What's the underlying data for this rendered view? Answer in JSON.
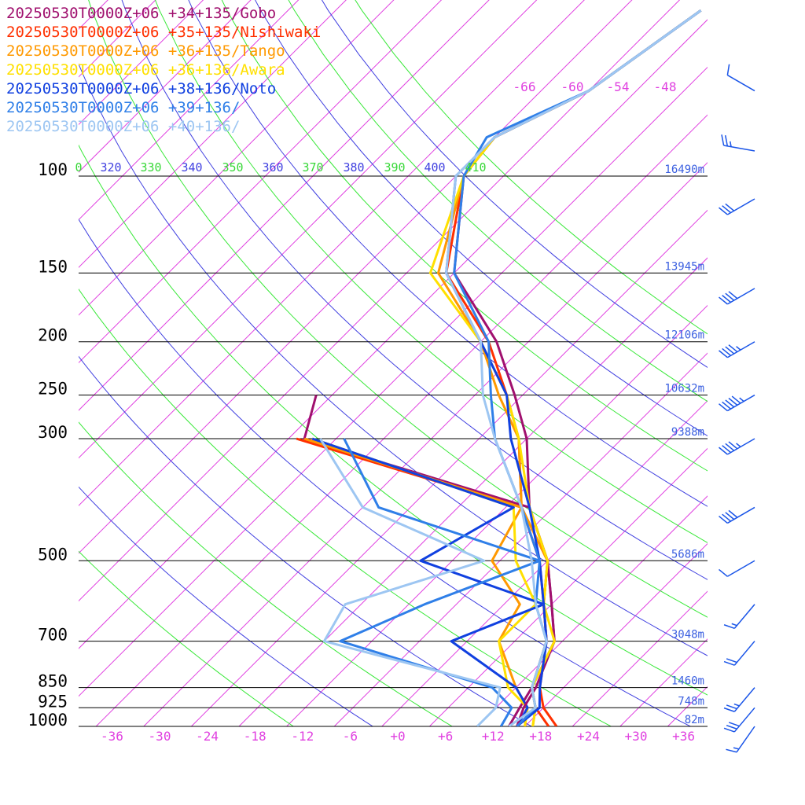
{
  "chart_data": {
    "type": "line",
    "subtype": "skew-t sounding",
    "legend_position": "top-left",
    "x_axis": {
      "label": "",
      "tick_labels": [
        "-36",
        "-30",
        "-24",
        "-18",
        "-12",
        "-6",
        "+0",
        "+6",
        "+12",
        "+18",
        "+24",
        "+30",
        "+36"
      ],
      "range": [
        -40,
        40
      ]
    },
    "y_axis": {
      "label": "",
      "scale": "log-pressure",
      "tick_labels": [
        "100",
        "150",
        "200",
        "250",
        "300",
        "500",
        "700",
        "850",
        "925",
        "1000"
      ],
      "range": [
        1000,
        100
      ]
    },
    "heights": [
      {
        "p": 100,
        "label": "16490m"
      },
      {
        "p": 150,
        "label": "13945m"
      },
      {
        "p": 200,
        "label": "12106m"
      },
      {
        "p": 250,
        "label": "10632m"
      },
      {
        "p": 300,
        "label": "9388m"
      },
      {
        "p": 500,
        "label": "5686m"
      },
      {
        "p": 700,
        "label": "3048m"
      },
      {
        "p": 850,
        "label": "1460m"
      },
      {
        "p": 925,
        "label": "748m"
      },
      {
        "p": 1000,
        "label": "82m"
      }
    ],
    "upper_temp_labels": [
      "-66",
      "-60",
      "-54",
      "-48"
    ],
    "theta_labels": [
      "0",
      "320",
      "330",
      "340",
      "350",
      "360",
      "370",
      "380",
      "390",
      "400",
      "410"
    ],
    "series": [
      {
        "name": "20250530T0000Z+06 +34+135/Gobo",
        "color": "#a0106e",
        "points": [
          [
            1000,
            15
          ],
          [
            925,
            13.5
          ],
          [
            850,
            12.5
          ],
          [
            700,
            9
          ],
          [
            600,
            4
          ],
          [
            500,
            -2
          ],
          [
            400,
            -11
          ],
          [
            300,
            -20
          ],
          [
            250,
            -27
          ],
          [
            200,
            -36
          ],
          [
            150,
            -50
          ],
          [
            100,
            -61
          ],
          [
            85,
            -62
          ],
          [
            70,
            -56
          ],
          [
            50,
            -52
          ]
        ]
      },
      {
        "name": "20250530T0000Z+06 +35+135/Nishiwaki",
        "color": "#ff3000",
        "points": [
          [
            1000,
            20
          ],
          [
            925,
            16
          ],
          [
            850,
            13
          ],
          [
            700,
            8
          ],
          [
            600,
            3
          ],
          [
            500,
            -2
          ],
          [
            400,
            -12
          ],
          [
            300,
            -21
          ],
          [
            250,
            -28
          ],
          [
            200,
            -37
          ],
          [
            150,
            -51
          ],
          [
            100,
            -61
          ],
          [
            85,
            -62
          ],
          [
            70,
            -56
          ],
          [
            50,
            -52
          ]
        ]
      },
      {
        "name": "20250530T0000Z+06 +36+135/Tango",
        "color": "#ff9900",
        "points": [
          [
            1000,
            17
          ],
          [
            925,
            15
          ],
          [
            850,
            12
          ],
          [
            700,
            8
          ],
          [
            600,
            3
          ],
          [
            500,
            -2
          ],
          [
            400,
            -12
          ],
          [
            300,
            -21
          ],
          [
            250,
            -29
          ],
          [
            200,
            -38
          ],
          [
            150,
            -52
          ],
          [
            100,
            -61
          ],
          [
            85,
            -62
          ],
          [
            70,
            -56
          ],
          [
            50,
            -52
          ]
        ]
      },
      {
        "name": "20250530T0000Z+06 +36+136/Awara",
        "color": "#ffe000",
        "points": [
          [
            1000,
            17
          ],
          [
            925,
            15
          ],
          [
            850,
            12
          ],
          [
            700,
            9
          ],
          [
            600,
            3
          ],
          [
            500,
            -2
          ],
          [
            400,
            -11
          ],
          [
            300,
            -21
          ],
          [
            250,
            -28
          ],
          [
            200,
            -38
          ],
          [
            150,
            -53
          ],
          [
            100,
            -61
          ],
          [
            85,
            -62
          ],
          [
            70,
            -56
          ],
          [
            50,
            -52
          ]
        ]
      },
      {
        "name": "20250530T0000Z+06 +38+136/Noto",
        "color": "#1040e0",
        "points": [
          [
            1000,
            15
          ],
          [
            925,
            15.5
          ],
          [
            850,
            13
          ],
          [
            700,
            8
          ],
          [
            600,
            3
          ],
          [
            500,
            -3
          ],
          [
            400,
            -11
          ],
          [
            300,
            -22
          ],
          [
            250,
            -28
          ],
          [
            200,
            -38
          ],
          [
            150,
            -51
          ],
          [
            100,
            -62
          ],
          [
            85,
            -62
          ],
          [
            70,
            -56
          ],
          [
            50,
            -52
          ]
        ]
      },
      {
        "name": "20250530T0000Z+06 +39+136/",
        "color": "#2f7fe8",
        "points": [
          [
            1000,
            15
          ],
          [
            925,
            15
          ],
          [
            850,
            12
          ],
          [
            700,
            8
          ],
          [
            600,
            2
          ],
          [
            500,
            -3
          ],
          [
            400,
            -12
          ],
          [
            300,
            -24
          ],
          [
            250,
            -30
          ],
          [
            200,
            -37
          ],
          [
            150,
            -50
          ],
          [
            100,
            -61
          ],
          [
            85,
            -63
          ],
          [
            70,
            -56
          ],
          [
            50,
            -52
          ]
        ]
      },
      {
        "name": "20250530T0000Z+06 +40+136/",
        "color": "#9dc6f2",
        "points": [
          [
            1000,
            14
          ],
          [
            925,
            15
          ],
          [
            850,
            12
          ],
          [
            700,
            8
          ],
          [
            600,
            2
          ],
          [
            500,
            -4
          ],
          [
            400,
            -12
          ],
          [
            300,
            -24
          ],
          [
            250,
            -31
          ],
          [
            200,
            -38
          ],
          [
            150,
            -51
          ],
          [
            100,
            -62
          ],
          [
            85,
            -62
          ],
          [
            70,
            -56
          ],
          [
            50,
            -52
          ]
        ]
      }
    ],
    "dewpoint_series": [
      {
        "name": "Gobo",
        "color": "#a0106e",
        "points": [
          [
            1000,
            14
          ],
          [
            925,
            13
          ],
          [
            850,
            12
          ],
          [
            700,
            9
          ],
          [
            600,
            4
          ],
          [
            500,
            -2
          ],
          [
            400,
            -11
          ],
          [
            300,
            -48
          ],
          [
            250,
            -52
          ]
        ]
      },
      {
        "name": "Nishiwaki",
        "color": "#ff3000",
        "points": [
          [
            1000,
            19
          ],
          [
            925,
            15
          ],
          [
            850,
            12
          ],
          [
            700,
            8
          ],
          [
            600,
            3
          ],
          [
            500,
            -3
          ],
          [
            400,
            -12
          ],
          [
            300,
            -49
          ]
        ]
      },
      {
        "name": "Tango",
        "color": "#ff9900",
        "points": [
          [
            1000,
            16
          ],
          [
            925,
            14
          ],
          [
            850,
            10
          ],
          [
            700,
            2
          ],
          [
            600,
            0
          ],
          [
            500,
            -9
          ],
          [
            400,
            -12
          ],
          [
            300,
            -48
          ]
        ]
      },
      {
        "name": "Awara",
        "color": "#ffe000",
        "points": [
          [
            1000,
            16
          ],
          [
            925,
            14
          ],
          [
            850,
            9
          ],
          [
            700,
            2
          ],
          [
            600,
            2
          ],
          [
            500,
            -6
          ],
          [
            400,
            -13
          ],
          [
            300,
            -47
          ]
        ]
      },
      {
        "name": "Noto",
        "color": "#1040e0",
        "points": [
          [
            1000,
            15
          ],
          [
            925,
            14
          ],
          [
            850,
            10
          ],
          [
            700,
            -4
          ],
          [
            600,
            3
          ],
          [
            500,
            -18
          ],
          [
            400,
            -13
          ],
          [
            300,
            -47
          ]
        ]
      },
      {
        "name": "+39+136",
        "color": "#2f7fe8",
        "points": [
          [
            1000,
            13
          ],
          [
            925,
            12
          ],
          [
            850,
            7
          ],
          [
            700,
            -18
          ],
          [
            600,
            -12
          ],
          [
            500,
            -3
          ],
          [
            400,
            -30
          ],
          [
            300,
            -43
          ]
        ]
      },
      {
        "name": "+40+136",
        "color": "#9dc6f2",
        "points": [
          [
            1000,
            10
          ],
          [
            925,
            10
          ],
          [
            850,
            8
          ],
          [
            700,
            -20
          ],
          [
            600,
            -22
          ],
          [
            500,
            -10
          ],
          [
            400,
            -32
          ],
          [
            300,
            -46
          ]
        ]
      }
    ],
    "wind_barbs": [
      {
        "p": 70,
        "dir": 300,
        "speed": 10
      },
      {
        "p": 90,
        "dir": 280,
        "speed": 25
      },
      {
        "p": 110,
        "dir": 240,
        "speed": 30
      },
      {
        "p": 160,
        "dir": 240,
        "speed": 40
      },
      {
        "p": 200,
        "dir": 240,
        "speed": 45
      },
      {
        "p": 250,
        "dir": 240,
        "speed": 55
      },
      {
        "p": 300,
        "dir": 240,
        "speed": 45
      },
      {
        "p": 400,
        "dir": 240,
        "speed": 40
      },
      {
        "p": 500,
        "dir": 240,
        "speed": 10
      },
      {
        "p": 600,
        "dir": 220,
        "speed": 15
      },
      {
        "p": 700,
        "dir": 220,
        "speed": 20
      },
      {
        "p": 850,
        "dir": 220,
        "speed": 25
      },
      {
        "p": 925,
        "dir": 220,
        "speed": 30
      },
      {
        "p": 1000,
        "dir": 215,
        "speed": 15
      }
    ]
  },
  "colors": {
    "isotherm": "#e040e0",
    "isobar": "#000000",
    "theta_green": "#38e838",
    "theta_blue": "#4040e0",
    "barb": "#1a55e8",
    "height_label": "#3a5fe0"
  }
}
